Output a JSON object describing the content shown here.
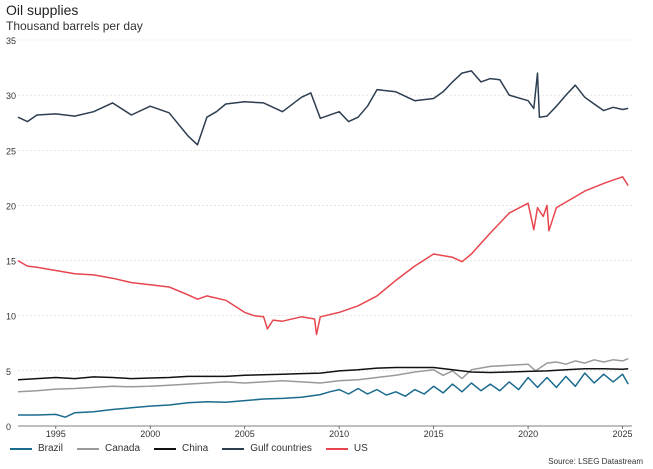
{
  "chart_data": {
    "type": "line",
    "title": "Oil supplies",
    "subtitle": "Thousand barrels per day",
    "xlabel": "",
    "ylabel": "",
    "xlim": [
      1993,
      2025.5
    ],
    "ylim": [
      0,
      35
    ],
    "x_ticks": [
      "1995",
      "2000",
      "2005",
      "2010",
      "2015",
      "2020",
      "2025"
    ],
    "y_ticks": [
      "0",
      "5",
      "10",
      "15",
      "20",
      "25",
      "30",
      "35"
    ],
    "grid": "horizontal dashed",
    "legend_position": "bottom-left",
    "source": "Source: LSEG Datastream",
    "series": [
      {
        "name": "Brazil",
        "color": "#1b6b8f",
        "points": [
          [
            1993,
            1.0
          ],
          [
            1994,
            1.0
          ],
          [
            1995,
            1.05
          ],
          [
            1995.5,
            0.8
          ],
          [
            1996,
            1.2
          ],
          [
            1997,
            1.3
          ],
          [
            1998,
            1.5
          ],
          [
            1999,
            1.65
          ],
          [
            2000,
            1.8
          ],
          [
            2001,
            1.9
          ],
          [
            2002,
            2.1
          ],
          [
            2003,
            2.2
          ],
          [
            2004,
            2.15
          ],
          [
            2005,
            2.3
          ],
          [
            2006,
            2.45
          ],
          [
            2007,
            2.5
          ],
          [
            2008,
            2.6
          ],
          [
            2009,
            2.85
          ],
          [
            2009.5,
            3.1
          ],
          [
            2010,
            3.3
          ],
          [
            2010.5,
            2.9
          ],
          [
            2011,
            3.4
          ],
          [
            2011.5,
            2.9
          ],
          [
            2012,
            3.3
          ],
          [
            2012.5,
            2.8
          ],
          [
            2013,
            3.1
          ],
          [
            2013.5,
            2.7
          ],
          [
            2014,
            3.3
          ],
          [
            2014.5,
            2.9
          ],
          [
            2015,
            3.6
          ],
          [
            2015.5,
            3.0
          ],
          [
            2016,
            3.8
          ],
          [
            2016.5,
            3.1
          ],
          [
            2017,
            3.9
          ],
          [
            2017.5,
            3.2
          ],
          [
            2018,
            3.8
          ],
          [
            2018.5,
            3.2
          ],
          [
            2019,
            4.0
          ],
          [
            2019.5,
            3.3
          ],
          [
            2020,
            4.4
          ],
          [
            2020.5,
            3.5
          ],
          [
            2021,
            4.4
          ],
          [
            2021.5,
            3.5
          ],
          [
            2022,
            4.5
          ],
          [
            2022.5,
            3.6
          ],
          [
            2023,
            4.8
          ],
          [
            2023.5,
            3.9
          ],
          [
            2024,
            4.7
          ],
          [
            2024.5,
            4.0
          ],
          [
            2025,
            4.7
          ],
          [
            2025.3,
            3.8
          ]
        ]
      },
      {
        "name": "Canada",
        "color": "#9a9a9a",
        "points": [
          [
            1993,
            3.1
          ],
          [
            1994,
            3.2
          ],
          [
            1995,
            3.35
          ],
          [
            1996,
            3.4
          ],
          [
            1997,
            3.5
          ],
          [
            1998,
            3.6
          ],
          [
            1999,
            3.55
          ],
          [
            2000,
            3.6
          ],
          [
            2001,
            3.7
          ],
          [
            2002,
            3.8
          ],
          [
            2003,
            3.9
          ],
          [
            2004,
            4.0
          ],
          [
            2005,
            3.9
          ],
          [
            2006,
            4.0
          ],
          [
            2007,
            4.1
          ],
          [
            2008,
            4.0
          ],
          [
            2009,
            3.9
          ],
          [
            2010,
            4.1
          ],
          [
            2011,
            4.2
          ],
          [
            2012,
            4.4
          ],
          [
            2013,
            4.6
          ],
          [
            2014,
            4.9
          ],
          [
            2015,
            5.1
          ],
          [
            2015.5,
            4.6
          ],
          [
            2016,
            5.0
          ],
          [
            2016.5,
            4.3
          ],
          [
            2017,
            5.1
          ],
          [
            2018,
            5.4
          ],
          [
            2019,
            5.5
          ],
          [
            2020,
            5.6
          ],
          [
            2020.4,
            5.0
          ],
          [
            2021,
            5.7
          ],
          [
            2021.5,
            5.8
          ],
          [
            2022,
            5.6
          ],
          [
            2022.5,
            5.9
          ],
          [
            2023,
            5.7
          ],
          [
            2023.5,
            6.0
          ],
          [
            2024,
            5.8
          ],
          [
            2024.5,
            6.0
          ],
          [
            2025,
            5.9
          ],
          [
            2025.3,
            6.1
          ]
        ]
      },
      {
        "name": "China",
        "color": "#111111",
        "points": [
          [
            1993,
            4.2
          ],
          [
            1994,
            4.3
          ],
          [
            1995,
            4.4
          ],
          [
            1996,
            4.3
          ],
          [
            1997,
            4.45
          ],
          [
            1998,
            4.4
          ],
          [
            1999,
            4.3
          ],
          [
            2000,
            4.35
          ],
          [
            2001,
            4.4
          ],
          [
            2002,
            4.5
          ],
          [
            2003,
            4.5
          ],
          [
            2004,
            4.5
          ],
          [
            2005,
            4.6
          ],
          [
            2006,
            4.65
          ],
          [
            2007,
            4.7
          ],
          [
            2008,
            4.75
          ],
          [
            2009,
            4.8
          ],
          [
            2010,
            5.0
          ],
          [
            2011,
            5.1
          ],
          [
            2012,
            5.25
          ],
          [
            2013,
            5.3
          ],
          [
            2014,
            5.3
          ],
          [
            2015,
            5.3
          ],
          [
            2016,
            5.1
          ],
          [
            2017,
            4.9
          ],
          [
            2018,
            4.85
          ],
          [
            2019,
            4.9
          ],
          [
            2020,
            4.95
          ],
          [
            2021,
            5.0
          ],
          [
            2022,
            5.1
          ],
          [
            2023,
            5.2
          ],
          [
            2024,
            5.2
          ],
          [
            2025,
            5.15
          ],
          [
            2025.3,
            5.2
          ]
        ]
      },
      {
        "name": "Gulf countries",
        "color": "#2d3e50",
        "points": [
          [
            1993,
            28.0
          ],
          [
            1993.5,
            27.6
          ],
          [
            1994,
            28.2
          ],
          [
            1995,
            28.3
          ],
          [
            1996,
            28.1
          ],
          [
            1997,
            28.5
          ],
          [
            1998,
            29.3
          ],
          [
            1999,
            28.2
          ],
          [
            2000,
            29.0
          ],
          [
            2001,
            28.4
          ],
          [
            2002,
            26.3
          ],
          [
            2002.5,
            25.5
          ],
          [
            2003,
            28.0
          ],
          [
            2003.5,
            28.5
          ],
          [
            2004,
            29.2
          ],
          [
            2005,
            29.4
          ],
          [
            2006,
            29.3
          ],
          [
            2007,
            28.5
          ],
          [
            2008,
            29.8
          ],
          [
            2008.5,
            30.2
          ],
          [
            2009,
            27.9
          ],
          [
            2010,
            28.5
          ],
          [
            2010.5,
            27.6
          ],
          [
            2011,
            28.0
          ],
          [
            2011.5,
            29.0
          ],
          [
            2012,
            30.5
          ],
          [
            2013,
            30.3
          ],
          [
            2014,
            29.5
          ],
          [
            2015,
            29.7
          ],
          [
            2015.5,
            30.3
          ],
          [
            2016,
            31.2
          ],
          [
            2016.5,
            32.0
          ],
          [
            2017,
            32.2
          ],
          [
            2017.5,
            31.2
          ],
          [
            2018,
            31.5
          ],
          [
            2018.5,
            31.4
          ],
          [
            2019,
            30.0
          ],
          [
            2020,
            29.5
          ],
          [
            2020.3,
            28.8
          ],
          [
            2020.5,
            32.0
          ],
          [
            2020.6,
            28.0
          ],
          [
            2021,
            28.1
          ],
          [
            2021.5,
            29.0
          ],
          [
            2022,
            30.0
          ],
          [
            2022.5,
            30.9
          ],
          [
            2023,
            29.8
          ],
          [
            2023.5,
            29.2
          ],
          [
            2024,
            28.6
          ],
          [
            2024.5,
            28.9
          ],
          [
            2025,
            28.7
          ],
          [
            2025.3,
            28.8
          ]
        ]
      },
      {
        "name": "US",
        "color": "#e8464f",
        "points": [
          [
            1993,
            15.0
          ],
          [
            1993.5,
            14.5
          ],
          [
            1994,
            14.4
          ],
          [
            1995,
            14.1
          ],
          [
            1996,
            13.8
          ],
          [
            1997,
            13.7
          ],
          [
            1998,
            13.4
          ],
          [
            1999,
            13.0
          ],
          [
            2000,
            12.8
          ],
          [
            2001,
            12.6
          ],
          [
            2002,
            11.9
          ],
          [
            2002.5,
            11.5
          ],
          [
            2003,
            11.8
          ],
          [
            2004,
            11.4
          ],
          [
            2005,
            10.3
          ],
          [
            2005.5,
            10.0
          ],
          [
            2006,
            9.9
          ],
          [
            2006.2,
            8.8
          ],
          [
            2006.5,
            9.6
          ],
          [
            2007,
            9.5
          ],
          [
            2008,
            9.9
          ],
          [
            2008.7,
            9.7
          ],
          [
            2008.8,
            8.3
          ],
          [
            2009,
            9.9
          ],
          [
            2010,
            10.3
          ],
          [
            2011,
            10.9
          ],
          [
            2012,
            11.8
          ],
          [
            2013,
            13.2
          ],
          [
            2014,
            14.5
          ],
          [
            2015,
            15.6
          ],
          [
            2016,
            15.3
          ],
          [
            2016.5,
            14.9
          ],
          [
            2017,
            15.6
          ],
          [
            2018,
            17.5
          ],
          [
            2019,
            19.3
          ],
          [
            2020,
            20.2
          ],
          [
            2020.3,
            17.8
          ],
          [
            2020.5,
            19.8
          ],
          [
            2020.8,
            19.0
          ],
          [
            2021,
            20.0
          ],
          [
            2021.1,
            17.7
          ],
          [
            2021.5,
            19.8
          ],
          [
            2022,
            20.3
          ],
          [
            2023,
            21.3
          ],
          [
            2024,
            22.0
          ],
          [
            2024.5,
            22.3
          ],
          [
            2025,
            22.6
          ],
          [
            2025.3,
            21.8
          ]
        ]
      }
    ]
  }
}
